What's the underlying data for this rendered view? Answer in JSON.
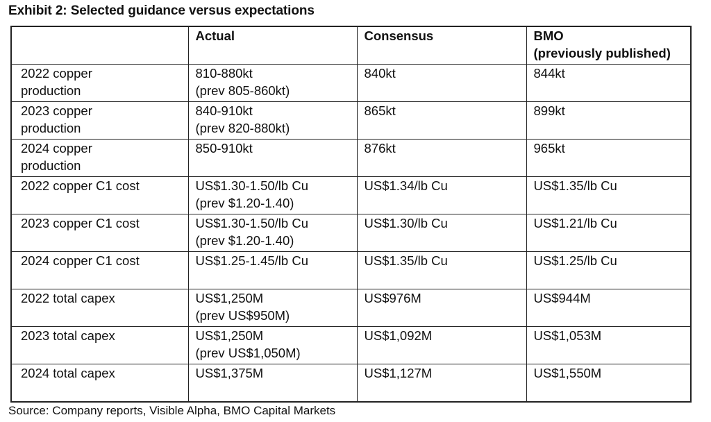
{
  "title": "Exhibit 2:  Selected guidance versus expectations",
  "columns": [
    "",
    "Actual",
    "Consensus",
    "BMO"
  ],
  "bmo_sub": "(previously published)",
  "rows": [
    {
      "metric": [
        "2022 copper",
        "production"
      ],
      "actual": [
        "810-880kt",
        "(prev 805-860kt)"
      ],
      "consensus": "840kt",
      "bmo": "844kt"
    },
    {
      "metric": [
        "2023 copper",
        "production"
      ],
      "actual": [
        "840-910kt",
        "(prev 820-880kt)"
      ],
      "consensus": "865kt",
      "bmo": "899kt"
    },
    {
      "metric": [
        "2024 copper",
        "production"
      ],
      "actual": [
        "850-910kt",
        ""
      ],
      "consensus": "876kt",
      "bmo": "965kt"
    },
    {
      "metric": [
        "2022 copper C1 cost",
        ""
      ],
      "actual": [
        "US$1.30-1.50/lb Cu",
        "(prev $1.20-1.40)"
      ],
      "consensus": "US$1.34/lb Cu",
      "bmo": "US$1.35/lb Cu"
    },
    {
      "metric": [
        "2023 copper C1 cost",
        ""
      ],
      "actual": [
        "US$1.30-1.50/lb Cu",
        "(prev $1.20-1.40)"
      ],
      "consensus": "US$1.30/lb Cu",
      "bmo": "US$1.21/lb Cu"
    },
    {
      "metric": [
        "2024 copper C1 cost",
        ""
      ],
      "actual": [
        "US$1.25-1.45/lb Cu",
        ""
      ],
      "consensus": "US$1.35/lb Cu",
      "bmo": "US$1.25/lb Cu"
    },
    {
      "metric": [
        "2022 total capex",
        ""
      ],
      "actual": [
        "US$1,250M",
        "(prev US$950M)"
      ],
      "consensus": "US$976M",
      "bmo": "US$944M"
    },
    {
      "metric": [
        "2023 total capex",
        ""
      ],
      "actual": [
        "US$1,250M",
        "(prev US$1,050M)"
      ],
      "consensus": "US$1,092M",
      "bmo": "US$1,053M"
    },
    {
      "metric": [
        "2024 total capex",
        ""
      ],
      "actual": [
        "US$1,375M",
        ""
      ],
      "consensus": "US$1,127M",
      "bmo": "US$1,550M"
    }
  ],
  "source": "Source: Company reports, Visible Alpha, BMO Capital Markets"
}
